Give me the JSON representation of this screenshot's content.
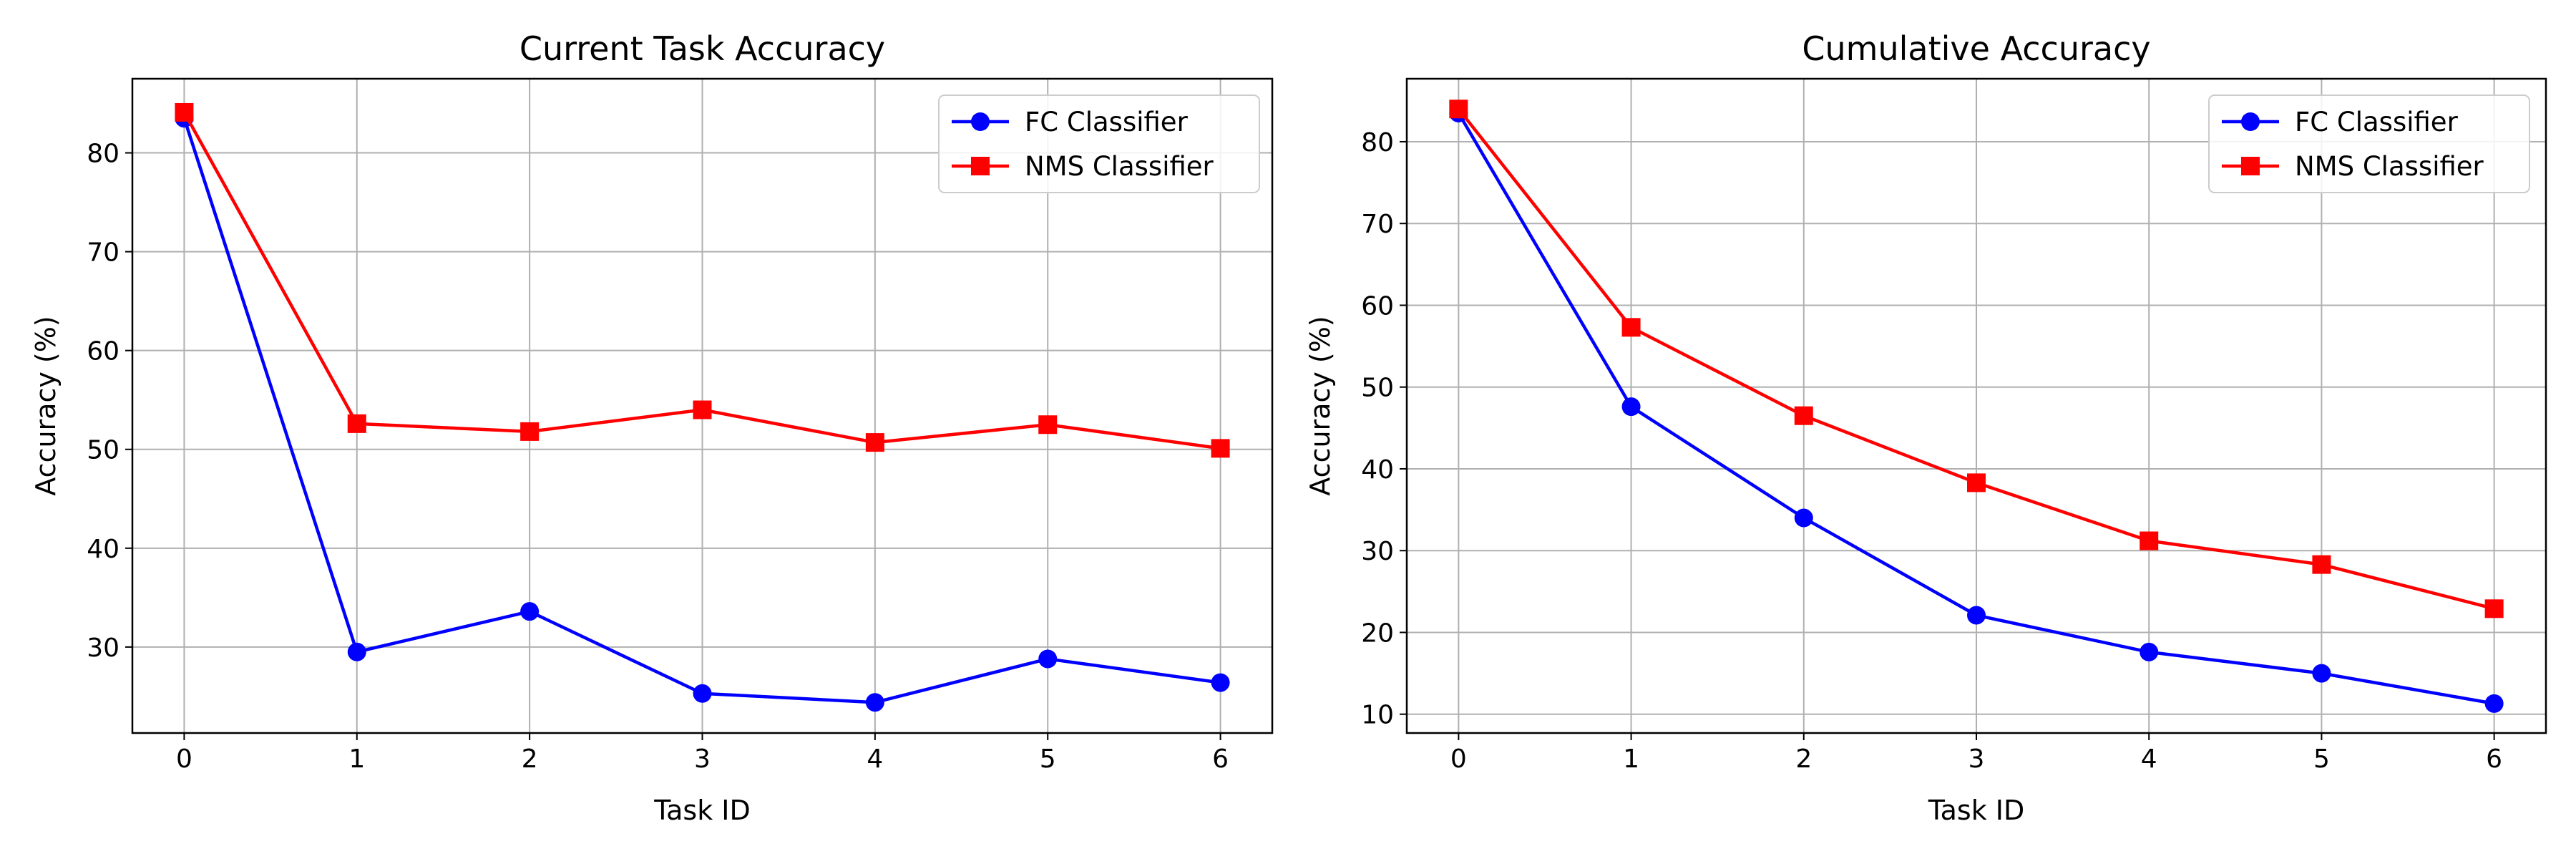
{
  "chart_data": [
    {
      "type": "line",
      "title": "Current Task Accuracy",
      "xlabel": "Task ID",
      "ylabel": "Accuracy (%)",
      "x": [
        0,
        1,
        2,
        3,
        4,
        5,
        6
      ],
      "xlim": [
        -0.3,
        6.3
      ],
      "ylim": [
        21.3,
        87.5
      ],
      "yticks": [
        30,
        40,
        50,
        60,
        70,
        80
      ],
      "grid": true,
      "legend": "top-right",
      "series": [
        {
          "name": "FC Classifier",
          "color": "#0000ff",
          "marker": "circle",
          "values": [
            83.5,
            29.5,
            33.6,
            25.3,
            24.4,
            28.8,
            26.4
          ]
        },
        {
          "name": "NMS Classifier",
          "color": "#ff0000",
          "marker": "square",
          "values": [
            84.1,
            52.6,
            51.8,
            54.0,
            50.7,
            52.5,
            50.1
          ]
        }
      ]
    },
    {
      "type": "line",
      "title": "Cumulative Accuracy",
      "xlabel": "Task ID",
      "ylabel": "Accuracy (%)",
      "x": [
        0,
        1,
        2,
        3,
        4,
        5,
        6
      ],
      "xlim": [
        -0.3,
        6.3
      ],
      "ylim": [
        7.7,
        87.7
      ],
      "yticks": [
        10,
        20,
        30,
        40,
        50,
        60,
        70,
        80
      ],
      "grid": true,
      "legend": "top-right",
      "series": [
        {
          "name": "FC Classifier",
          "color": "#0000ff",
          "marker": "circle",
          "values": [
            83.5,
            47.6,
            34.0,
            22.1,
            17.6,
            15.0,
            11.3
          ]
        },
        {
          "name": "NMS Classifier",
          "color": "#ff0000",
          "marker": "square",
          "values": [
            84.0,
            57.3,
            46.5,
            38.3,
            31.2,
            28.3,
            22.9
          ]
        }
      ]
    }
  ]
}
